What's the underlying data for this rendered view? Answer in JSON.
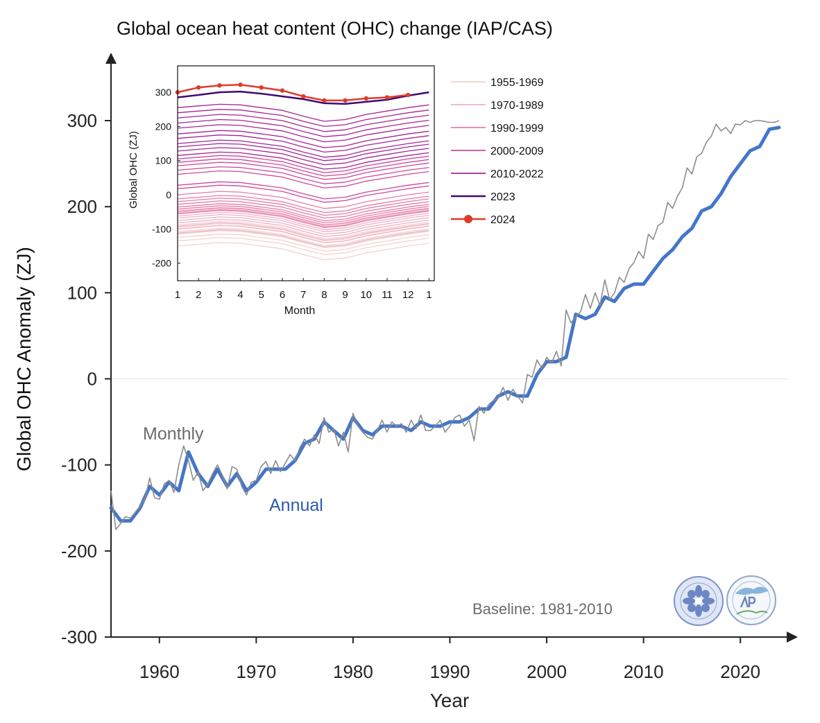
{
  "chart_data": {
    "title": "Global ocean heat content (OHC) change (IAP/CAS)",
    "main": {
      "type": "line",
      "xlabel": "Year",
      "ylabel": "Global OHC Anomaly (ZJ)",
      "xlim": [
        1955,
        2025
      ],
      "ylim": [
        -300,
        370
      ],
      "xticks": [
        1960,
        1970,
        1980,
        1990,
        2000,
        2010,
        2020
      ],
      "xtick_labels": [
        "1960",
        "1970",
        "1980",
        "1990",
        "2000",
        "2010",
        "2020"
      ],
      "yticks": [
        -300,
        -200,
        -100,
        0,
        100,
        200,
        300
      ],
      "ytick_labels": [
        "-300",
        "-200",
        "-100",
        "0",
        "100",
        "200",
        "300"
      ],
      "zero_line": true,
      "annotations": {
        "monthly": "Monthly",
        "annual": "Annual",
        "baseline": "Baseline: 1981-2010"
      },
      "series": [
        {
          "name": "Annual",
          "color": "#3a6fc6",
          "x": [
            1955,
            1956,
            1957,
            1958,
            1959,
            1960,
            1961,
            1962,
            1963,
            1964,
            1965,
            1966,
            1967,
            1968,
            1969,
            1970,
            1971,
            1972,
            1973,
            1974,
            1975,
            1976,
            1977,
            1978,
            1979,
            1980,
            1981,
            1982,
            1983,
            1984,
            1985,
            1986,
            1987,
            1988,
            1989,
            1990,
            1991,
            1992,
            1993,
            1994,
            1995,
            1996,
            1997,
            1998,
            1999,
            2000,
            2001,
            2002,
            2003,
            2004,
            2005,
            2006,
            2007,
            2008,
            2009,
            2010,
            2011,
            2012,
            2013,
            2014,
            2015,
            2016,
            2017,
            2018,
            2019,
            2020,
            2021,
            2022,
            2023,
            2024
          ],
          "y": [
            -150,
            -165,
            -165,
            -150,
            -125,
            -135,
            -120,
            -130,
            -85,
            -110,
            -125,
            -105,
            -125,
            -110,
            -130,
            -120,
            -105,
            -105,
            -105,
            -95,
            -75,
            -70,
            -50,
            -60,
            -70,
            -45,
            -60,
            -65,
            -55,
            -55,
            -55,
            -60,
            -50,
            -55,
            -55,
            -50,
            -50,
            -45,
            -35,
            -35,
            -20,
            -15,
            -20,
            -20,
            5,
            20,
            20,
            25,
            75,
            70,
            75,
            95,
            90,
            105,
            110,
            110,
            125,
            140,
            150,
            165,
            175,
            195,
            200,
            215,
            235,
            250,
            265,
            270,
            290,
            292
          ]
        },
        {
          "name": "Monthly",
          "color": "#8c8c8c",
          "x": [
            1955,
            1955.5,
            1956,
            1956.5,
            1957,
            1957.5,
            1958,
            1958.5,
            1959,
            1959.5,
            1960,
            1960.5,
            1961,
            1961.5,
            1962,
            1962.5,
            1963,
            1963.5,
            1964,
            1964.5,
            1965,
            1965.5,
            1966,
            1966.5,
            1967,
            1967.5,
            1968,
            1968.5,
            1969,
            1969.5,
            1970,
            1970.5,
            1971,
            1971.5,
            1972,
            1972.5,
            1973,
            1973.5,
            1974,
            1974.5,
            1975,
            1975.5,
            1976,
            1976.5,
            1977,
            1977.5,
            1978,
            1978.5,
            1979,
            1979.5,
            1980,
            1980.5,
            1981,
            1981.5,
            1982,
            1982.5,
            1983,
            1983.5,
            1984,
            1984.5,
            1985,
            1985.5,
            1986,
            1986.5,
            1987,
            1987.5,
            1988,
            1988.5,
            1989,
            1989.5,
            1990,
            1990.5,
            1991,
            1991.5,
            1992,
            1992.5,
            1993,
            1993.5,
            1994,
            1994.5,
            1995,
            1995.5,
            1996,
            1996.5,
            1997,
            1997.5,
            1998,
            1998.5,
            1999,
            1999.5,
            2000,
            2000.5,
            2001,
            2001.5,
            2002,
            2002.5,
            2003,
            2003.5,
            2004,
            2004.5,
            2005,
            2005.5,
            2006,
            2006.5,
            2007,
            2007.5,
            2008,
            2008.5,
            2009,
            2009.5,
            2010,
            2010.5,
            2011,
            2011.5,
            2012,
            2012.5,
            2013,
            2013.5,
            2014,
            2014.5,
            2015,
            2015.5,
            2016,
            2016.5,
            2017,
            2017.5,
            2018,
            2018.5,
            2019,
            2019.5,
            2020,
            2020.5,
            2021,
            2021.5,
            2022,
            2022.5,
            2023,
            2023.5,
            2024
          ],
          "y": [
            -130,
            -175,
            -168,
            -160,
            -162,
            -155,
            -148,
            -140,
            -115,
            -138,
            -140,
            -122,
            -118,
            -132,
            -100,
            -78,
            -95,
            -118,
            -108,
            -130,
            -122,
            -110,
            -100,
            -112,
            -128,
            -102,
            -105,
            -125,
            -135,
            -120,
            -118,
            -102,
            -96,
            -110,
            -95,
            -108,
            -98,
            -88,
            -95,
            -80,
            -70,
            -78,
            -65,
            -75,
            -45,
            -62,
            -58,
            -78,
            -62,
            -85,
            -40,
            -55,
            -62,
            -68,
            -70,
            -60,
            -48,
            -62,
            -50,
            -55,
            -52,
            -62,
            -48,
            -58,
            -42,
            -60,
            -60,
            -55,
            -48,
            -62,
            -55,
            -45,
            -42,
            -55,
            -48,
            -72,
            -32,
            -40,
            -30,
            -25,
            -22,
            -10,
            -25,
            -12,
            -20,
            -28,
            5,
            2,
            22,
            12,
            25,
            18,
            32,
            15,
            80,
            65,
            72,
            78,
            98,
            82,
            100,
            85,
            115,
            92,
            100,
            118,
            112,
            128,
            135,
            148,
            140,
            168,
            162,
            178,
            182,
            205,
            198,
            212,
            222,
            245,
            238,
            258,
            262,
            275,
            282,
            296,
            288,
            292,
            285,
            296,
            295,
            300,
            298,
            300,
            300,
            299,
            298,
            298,
            300
          ]
        }
      ]
    },
    "inset": {
      "type": "line",
      "xlabel": "Month",
      "ylabel": "Global OHC (ZJ)",
      "xlim": [
        1,
        13
      ],
      "ylim": [
        -245,
        380
      ],
      "xtick_labels": [
        "1",
        "2",
        "3",
        "4",
        "5",
        "6",
        "7",
        "8",
        "9",
        "10",
        "11",
        "12",
        "1"
      ],
      "ytick_labels": [
        "-200",
        "-100",
        "0",
        "100",
        "200",
        "300"
      ],
      "yticks": [
        -200,
        -100,
        0,
        100,
        200,
        300
      ],
      "legend_position": "right-of-inset",
      "legend": [
        {
          "label": "1955-1969",
          "color": "#f2d2cc"
        },
        {
          "label": "1970-1989",
          "color": "#eeb0c4"
        },
        {
          "label": "1990-1999",
          "color": "#e87ba6"
        },
        {
          "label": "2000-2009",
          "color": "#d0479a"
        },
        {
          "label": "2010-2022",
          "color": "#a52594"
        },
        {
          "label": "2023",
          "color": "#3e0a6e"
        },
        {
          "label": "2024",
          "color": "#e03a2a"
        }
      ],
      "seasonal_cycle": [
        0,
        5,
        10,
        8,
        0,
        -8,
        -25,
        -40,
        -35,
        -20,
        -10,
        0,
        8
      ],
      "series": [
        {
          "group": "1955-1969",
          "color": "#f2d2cc",
          "annual_mean": -150
        },
        {
          "group": "1955-1969",
          "color": "#f2d2cc",
          "annual_mean": -135
        },
        {
          "group": "1955-1969",
          "color": "#f2d2cc",
          "annual_mean": -125
        },
        {
          "group": "1955-1969",
          "color": "#f2d2cc",
          "annual_mean": -115
        },
        {
          "group": "1955-1969",
          "color": "#f2d2cc",
          "annual_mean": -108
        },
        {
          "group": "1955-1969",
          "color": "#f2d2cc",
          "annual_mean": -100
        },
        {
          "group": "1955-1969",
          "color": "#f2d2cc",
          "annual_mean": -95
        },
        {
          "group": "1955-1969",
          "color": "#f2d2cc",
          "annual_mean": -88
        },
        {
          "group": "1970-1989",
          "color": "#eeb0c4",
          "annual_mean": -112
        },
        {
          "group": "1970-1989",
          "color": "#eeb0c4",
          "annual_mean": -100
        },
        {
          "group": "1970-1989",
          "color": "#eeb0c4",
          "annual_mean": -92
        },
        {
          "group": "1970-1989",
          "color": "#eeb0c4",
          "annual_mean": -82
        },
        {
          "group": "1970-1989",
          "color": "#eeb0c4",
          "annual_mean": -75
        },
        {
          "group": "1970-1989",
          "color": "#eeb0c4",
          "annual_mean": -68
        },
        {
          "group": "1970-1989",
          "color": "#eeb0c4",
          "annual_mean": -62
        },
        {
          "group": "1970-1989",
          "color": "#eeb0c4",
          "annual_mean": -56
        },
        {
          "group": "1970-1989",
          "color": "#eeb0c4",
          "annual_mean": -52
        },
        {
          "group": "1970-1989",
          "color": "#eeb0c4",
          "annual_mean": -48
        },
        {
          "group": "1990-1999",
          "color": "#e87ba6",
          "annual_mean": -55
        },
        {
          "group": "1990-1999",
          "color": "#e87ba6",
          "annual_mean": -48
        },
        {
          "group": "1990-1999",
          "color": "#e87ba6",
          "annual_mean": -42
        },
        {
          "group": "1990-1999",
          "color": "#e87ba6",
          "annual_mean": -36
        },
        {
          "group": "1990-1999",
          "color": "#e87ba6",
          "annual_mean": -28
        },
        {
          "group": "1990-1999",
          "color": "#e87ba6",
          "annual_mean": -20
        },
        {
          "group": "1990-1999",
          "color": "#e87ba6",
          "annual_mean": -12
        },
        {
          "group": "1990-1999",
          "color": "#e87ba6",
          "annual_mean": 0
        },
        {
          "group": "2000-2009",
          "color": "#d0479a",
          "annual_mean": 18
        },
        {
          "group": "2000-2009",
          "color": "#d0479a",
          "annual_mean": 28
        },
        {
          "group": "2000-2009",
          "color": "#d0479a",
          "annual_mean": 60
        },
        {
          "group": "2000-2009",
          "color": "#d0479a",
          "annual_mean": 72
        },
        {
          "group": "2000-2009",
          "color": "#d0479a",
          "annual_mean": 85
        },
        {
          "group": "2000-2009",
          "color": "#d0479a",
          "annual_mean": 95
        },
        {
          "group": "2000-2009",
          "color": "#d0479a",
          "annual_mean": 105
        },
        {
          "group": "2010-2022",
          "color": "#a52594",
          "annual_mean": 115
        },
        {
          "group": "2010-2022",
          "color": "#a52594",
          "annual_mean": 128
        },
        {
          "group": "2010-2022",
          "color": "#a52594",
          "annual_mean": 140
        },
        {
          "group": "2010-2022",
          "color": "#a52594",
          "annual_mean": 150
        },
        {
          "group": "2010-2022",
          "color": "#a52594",
          "annual_mean": 165
        },
        {
          "group": "2010-2022",
          "color": "#a52594",
          "annual_mean": 178
        },
        {
          "group": "2010-2022",
          "color": "#a52594",
          "annual_mean": 195
        },
        {
          "group": "2010-2022",
          "color": "#a52594",
          "annual_mean": 210
        },
        {
          "group": "2010-2022",
          "color": "#a52594",
          "annual_mean": 225
        },
        {
          "group": "2010-2022",
          "color": "#a52594",
          "annual_mean": 240
        },
        {
          "group": "2010-2022",
          "color": "#a52594",
          "annual_mean": 255
        },
        {
          "group": "2023",
          "color": "#3e0a6e",
          "width": 2.5,
          "values": [
            285,
            292,
            300,
            302,
            296,
            288,
            280,
            268,
            266,
            272,
            278,
            290,
            300
          ]
        },
        {
          "group": "2024",
          "color": "#e03a2a",
          "width": 2.5,
          "markers": true,
          "values": [
            300,
            314,
            320,
            322,
            314,
            305,
            288,
            276,
            276,
            282,
            285,
            292
          ]
        }
      ]
    }
  }
}
